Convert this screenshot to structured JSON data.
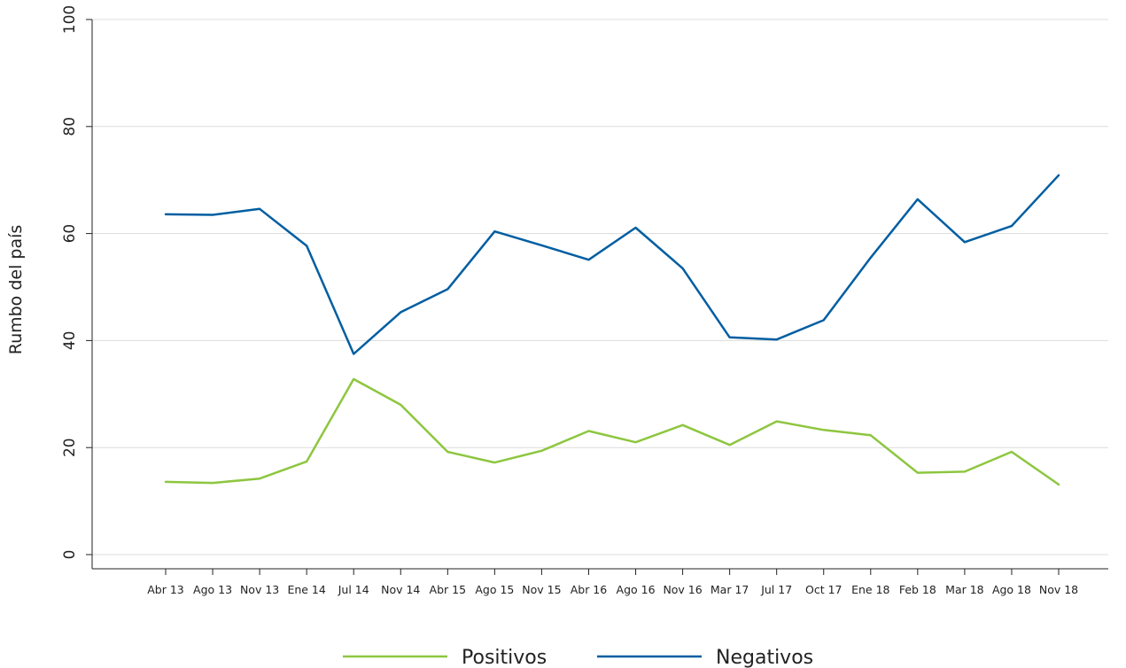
{
  "chart_data": {
    "type": "line",
    "title": "",
    "xlabel": "",
    "ylabel": "Rumbo del país",
    "ylim": [
      0,
      100
    ],
    "yticks": [
      "0",
      "20",
      "40",
      "60",
      "80",
      "100"
    ],
    "grid": true,
    "legend_position": "bottom",
    "categories": [
      "Abr 13",
      "Ago 13",
      "Nov 13",
      "Ene 14",
      "Jul 14",
      "Nov 14",
      "Abr 15",
      "Ago 15",
      "Nov 15",
      "Abr 16",
      "Ago 16",
      "Nov 16",
      "Mar 17",
      "Jul 17",
      "Oct 17",
      "Ene 18",
      "Feb 18",
      "Mar 18",
      "Ago 18",
      "Nov 18"
    ],
    "series": [
      {
        "name": "Positivos",
        "color": "#8dc63f",
        "values": [
          13.6,
          13.4,
          14.2,
          17.4,
          32.8,
          28.0,
          19.2,
          17.2,
          19.4,
          23.1,
          21.0,
          24.2,
          20.5,
          24.9,
          23.3,
          22.3,
          15.3,
          15.5,
          19.2,
          13.1
        ]
      },
      {
        "name": "Negativos",
        "color": "#005ea1",
        "values": [
          63.6,
          63.5,
          64.6,
          57.7,
          37.5,
          45.3,
          49.6,
          60.4,
          57.8,
          55.1,
          61.1,
          53.5,
          40.6,
          40.2,
          43.8,
          55.5,
          66.4,
          58.4,
          61.4,
          70.9
        ]
      }
    ]
  }
}
